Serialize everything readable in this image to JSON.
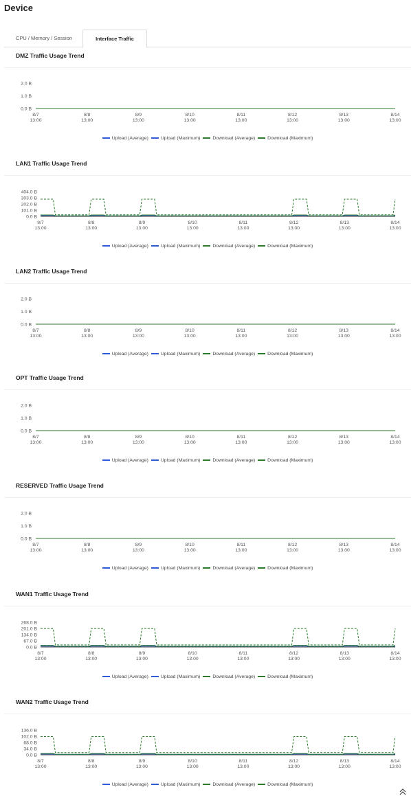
{
  "page": {
    "title": "Device"
  },
  "tabs": [
    {
      "label": "CPU / Memory / Session",
      "active": false
    },
    {
      "label": "Interface Traffic",
      "active": true
    }
  ],
  "colors": {
    "upload": "#2e5bd8",
    "download": "#2b7a2b",
    "axis": "#333333"
  },
  "legend": [
    {
      "label": "Upload (Average)",
      "color": "#2e5bd8",
      "style": "solid"
    },
    {
      "label": "Upload (Maximum)",
      "color": "#2e5bd8",
      "style": "dashed"
    },
    {
      "label": "Download (Average)",
      "color": "#2b7a2b",
      "style": "solid"
    },
    {
      "label": "Download (Maximum)",
      "color": "#2b7a2b",
      "style": "dashed"
    }
  ],
  "scroll_top_icon": "double-chevron-up-icon",
  "chart_data": [
    {
      "type": "line",
      "title": "DMZ Traffic Usage Trend",
      "x": [
        "8/7\n13:00",
        "8/8\n13:00",
        "8/9\n13:00",
        "8/10\n13:00",
        "8/11\n13:00",
        "8/12\n13:00",
        "8/13\n13:00",
        "8/14\n13:00"
      ],
      "y_ticks": [
        "0.0 B",
        "1.0 B",
        "2.0 B"
      ],
      "ylim": [
        0,
        2
      ],
      "busy_days": [],
      "series": [
        {
          "name": "Upload (Average)",
          "peak": 0,
          "base": 0
        },
        {
          "name": "Upload (Maximum)",
          "peak": 0,
          "base": 0
        },
        {
          "name": "Download (Average)",
          "peak": 0,
          "base": 0
        },
        {
          "name": "Download (Maximum)",
          "peak": 0,
          "base": 0
        }
      ]
    },
    {
      "type": "line",
      "title": "LAN1 Traffic Usage Trend",
      "x": [
        "8/7\n13:00",
        "8/8\n13:00",
        "8/9\n13:00",
        "8/10\n13:00",
        "8/11\n13:00",
        "8/12\n13:00",
        "8/13\n13:00",
        "8/14\n13:00"
      ],
      "y_ticks": [
        "0.0 B",
        "101.0 B",
        "202.0 B",
        "303.0 B",
        "404.0 B"
      ],
      "ylim": [
        0,
        404
      ],
      "busy_days": [
        0,
        1,
        2,
        5,
        6,
        7
      ],
      "series": [
        {
          "name": "Upload (Average)",
          "peak": 14,
          "base": 6
        },
        {
          "name": "Upload (Maximum)",
          "peak": 20,
          "base": 10
        },
        {
          "name": "Download (Average)",
          "peak": 22,
          "base": 8
        },
        {
          "name": "Download (Maximum)",
          "peak": 280,
          "base": 25
        }
      ]
    },
    {
      "type": "line",
      "title": "LAN2 Traffic Usage Trend",
      "x": [
        "8/7\n13:00",
        "8/8\n13:00",
        "8/9\n13:00",
        "8/10\n13:00",
        "8/11\n13:00",
        "8/12\n13:00",
        "8/13\n13:00",
        "8/14\n13:00"
      ],
      "y_ticks": [
        "0.0 B",
        "1.0 B",
        "2.0 B"
      ],
      "ylim": [
        0,
        2
      ],
      "busy_days": [],
      "series": [
        {
          "name": "Upload (Average)",
          "peak": 0,
          "base": 0
        },
        {
          "name": "Upload (Maximum)",
          "peak": 0,
          "base": 0
        },
        {
          "name": "Download (Average)",
          "peak": 0,
          "base": 0
        },
        {
          "name": "Download (Maximum)",
          "peak": 0,
          "base": 0
        }
      ]
    },
    {
      "type": "line",
      "title": "OPT Traffic Usage Trend",
      "x": [
        "8/7\n13:00",
        "8/8\n13:00",
        "8/9\n13:00",
        "8/10\n13:00",
        "8/11\n13:00",
        "8/12\n13:00",
        "8/13\n13:00",
        "8/14\n13:00"
      ],
      "y_ticks": [
        "0.0 B",
        "1.0 B",
        "2.0 B"
      ],
      "ylim": [
        0,
        2
      ],
      "busy_days": [],
      "series": [
        {
          "name": "Upload (Average)",
          "peak": 0,
          "base": 0
        },
        {
          "name": "Upload (Maximum)",
          "peak": 0,
          "base": 0
        },
        {
          "name": "Download (Average)",
          "peak": 0,
          "base": 0
        },
        {
          "name": "Download (Maximum)",
          "peak": 0,
          "base": 0
        }
      ]
    },
    {
      "type": "line",
      "title": "RESERVED Traffic Usage Trend",
      "x": [
        "8/7\n13:00",
        "8/8\n13:00",
        "8/9\n13:00",
        "8/10\n13:00",
        "8/11\n13:00",
        "8/12\n13:00",
        "8/13\n13:00",
        "8/14\n13:00"
      ],
      "y_ticks": [
        "0.0 B",
        "1.0 B",
        "2.0 B"
      ],
      "ylim": [
        0,
        2
      ],
      "busy_days": [],
      "series": [
        {
          "name": "Upload (Average)",
          "peak": 0,
          "base": 0
        },
        {
          "name": "Upload (Maximum)",
          "peak": 0,
          "base": 0
        },
        {
          "name": "Download (Average)",
          "peak": 0,
          "base": 0
        },
        {
          "name": "Download (Maximum)",
          "peak": 0,
          "base": 0
        }
      ]
    },
    {
      "type": "line",
      "title": "WAN1 Traffic Usage Trend",
      "x": [
        "8/7\n13:00",
        "8/8\n13:00",
        "8/9\n13:00",
        "8/10\n13:00",
        "8/11\n13:00",
        "8/12\n13:00",
        "8/13\n13:00",
        "8/14\n13:00"
      ],
      "y_ticks": [
        "0.0 B",
        "67.0 B",
        "134.0 B",
        "201.0 B",
        "268.0 B"
      ],
      "ylim": [
        0,
        268
      ],
      "busy_days": [
        0,
        1,
        2,
        5,
        6,
        7
      ],
      "series": [
        {
          "name": "Upload (Average)",
          "peak": 10,
          "base": 5
        },
        {
          "name": "Upload (Maximum)",
          "peak": 16,
          "base": 8
        },
        {
          "name": "Download (Average)",
          "peak": 18,
          "base": 7
        },
        {
          "name": "Download (Maximum)",
          "peak": 200,
          "base": 22
        }
      ]
    },
    {
      "type": "line",
      "title": "WAN2 Traffic Usage Trend",
      "x": [
        "8/7\n13:00",
        "8/8\n13:00",
        "8/9\n13:00",
        "8/10\n13:00",
        "8/11\n13:00",
        "8/12\n13:00",
        "8/13\n13:00",
        "8/14\n13:00"
      ],
      "y_ticks": [
        "0.0 B",
        "34.0 B",
        "68.0 B",
        "102.0 B",
        "136.0 B"
      ],
      "ylim": [
        0,
        136
      ],
      "busy_days": [
        0,
        1,
        2,
        5,
        6,
        7
      ],
      "series": [
        {
          "name": "Upload (Average)",
          "peak": 4,
          "base": 2
        },
        {
          "name": "Upload (Maximum)",
          "peak": 6,
          "base": 3
        },
        {
          "name": "Download (Average)",
          "peak": 7,
          "base": 3
        },
        {
          "name": "Download (Maximum)",
          "peak": 100,
          "base": 12
        }
      ]
    }
  ]
}
